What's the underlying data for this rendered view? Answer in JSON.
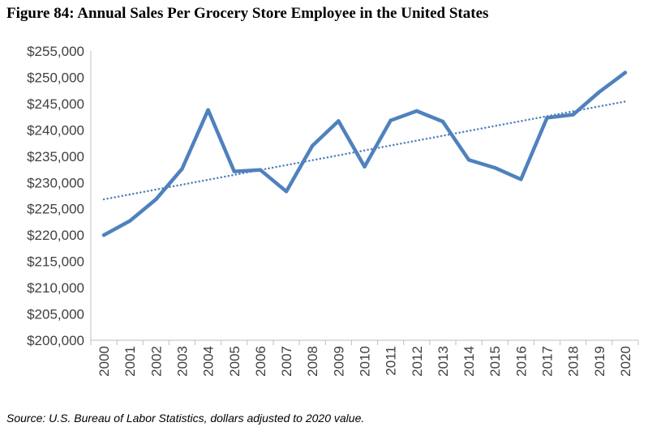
{
  "figure": {
    "title": "Figure 84: Annual Sales Per Grocery Store Employee in the United States",
    "source": "Source: U.S. Bureau of Labor Statistics, dollars adjusted to 2020 value."
  },
  "chart_data": {
    "type": "line",
    "title": "Figure 84: Annual Sales Per Grocery Store Employee in the United States",
    "xlabel": "",
    "ylabel": "",
    "categories": [
      "2000",
      "2001",
      "2002",
      "2003",
      "2004",
      "2005",
      "2006",
      "2007",
      "2008",
      "2009",
      "2010",
      "2011",
      "2012",
      "2013",
      "2014",
      "2015",
      "2016",
      "2017",
      "2018",
      "2019",
      "2020"
    ],
    "series": [
      {
        "values": [
          220000,
          222700,
          226800,
          232600,
          243800,
          232100,
          232400,
          228300,
          237000,
          241700,
          233000,
          241800,
          243600,
          241600,
          234300,
          232800,
          230600,
          242300,
          242900,
          247200,
          250900
        ],
        "color": "#4f81bd",
        "style": "solid"
      },
      {
        "values": [
          226800,
          227730,
          228660,
          229590,
          230520,
          231450,
          232380,
          233310,
          234240,
          235170,
          236100,
          237030,
          237960,
          238890,
          239820,
          240750,
          241680,
          242610,
          243540,
          244470,
          245400
        ],
        "color": "#4f81bd",
        "style": "dotted",
        "trendline": "linear"
      }
    ],
    "ylim": [
      200000,
      255000
    ],
    "ytick_step": 5000,
    "ytick_labels": [
      "$200,000",
      "$205,000",
      "$210,000",
      "$215,000",
      "$220,000",
      "$225,000",
      "$230,000",
      "$235,000",
      "$240,000",
      "$245,000",
      "$250,000",
      "$255,000"
    ],
    "grid": false,
    "legend": "none"
  }
}
